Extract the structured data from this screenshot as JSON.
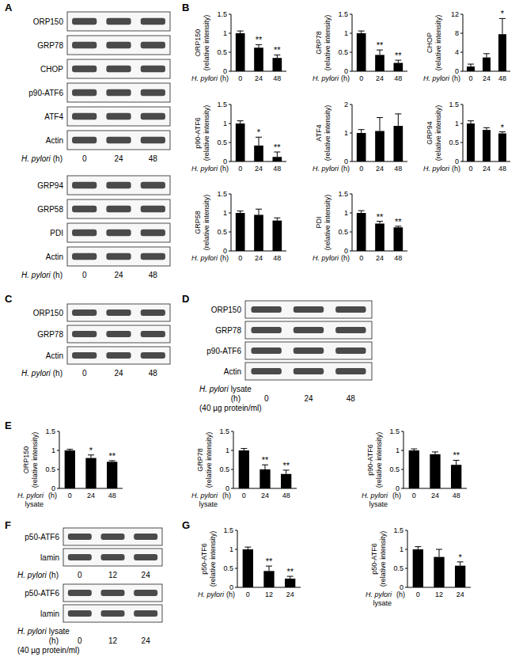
{
  "panel_labels": [
    "A",
    "B",
    "C",
    "D",
    "E",
    "F",
    "G"
  ],
  "blots": [
    {
      "rows": [
        "ORP150",
        "GRP78",
        "CHOP",
        "p90-ATF6",
        "ATF4",
        "Actin"
      ],
      "x_label": [
        "H. pylori",
        "(h)"
      ],
      "lanes": [
        "0",
        "24",
        "48"
      ]
    },
    {
      "rows": [
        "GRP94",
        "GRP58",
        "PDI",
        "Actin"
      ],
      "x_label": [
        "H. pylori",
        "(h)"
      ],
      "lanes": [
        "0",
        "24",
        "48"
      ]
    },
    {
      "rows": [
        "ORP150",
        "GRP78",
        "Actin"
      ],
      "x_label": [
        "H. pylori",
        "(h)"
      ],
      "lanes": [
        "0",
        "24",
        "48"
      ]
    },
    {
      "rows": [
        "ORP150",
        "GRP78",
        "p90-ATF6",
        "Actin"
      ],
      "x_label": [
        "H. pylori",
        "lysate",
        "(40 µg protein/ml)",
        "(h)"
      ],
      "lanes": [
        "0",
        "24",
        "48"
      ]
    },
    {
      "rows": [
        "p50-ATF6",
        "lamin"
      ],
      "x_label": [
        "H. pylori",
        "(h)"
      ],
      "lanes": [
        "0",
        "12",
        "24"
      ]
    },
    {
      "rows": [
        "p50-ATF6",
        "lamin"
      ],
      "x_label": [
        "H. pylori",
        "lysate",
        "(40 µg protein/ml)",
        "(h)"
      ],
      "lanes": [
        "0",
        "12",
        "24"
      ]
    }
  ],
  "chart_data": [
    {
      "type": "bar",
      "y_label": "ORP150 (relative intensity)",
      "x_label": [
        "H. pylori",
        "(h)"
      ],
      "categories": [
        "0",
        "24",
        "48"
      ],
      "values": [
        1,
        0.62,
        0.35
      ],
      "errors": [
        0.06,
        0.08,
        0.08
      ],
      "annotations": [
        null,
        "**",
        "**"
      ],
      "color": "#000000",
      "ylim": [
        0,
        1.5
      ],
      "yticks": [
        0,
        0.5,
        1,
        1.5
      ]
    },
    {
      "type": "bar",
      "y_label": "GRP78 (relative intensity)",
      "x_label": [
        "H. pylori",
        "(h)"
      ],
      "categories": [
        "0",
        "24",
        "48"
      ],
      "values": [
        1,
        0.43,
        0.22
      ],
      "errors": [
        0.06,
        0.13,
        0.07
      ],
      "annotations": [
        null,
        "**",
        "**"
      ],
      "color": "#000000",
      "ylim": [
        0,
        1.5
      ],
      "yticks": [
        0,
        0.5,
        1,
        1.5
      ]
    },
    {
      "type": "bar",
      "y_label": "CHOP (relative intensity)",
      "x_label": [
        "H. pylori",
        "(h)"
      ],
      "categories": [
        "0",
        "24",
        "48"
      ],
      "values": [
        1,
        2.9,
        7.8
      ],
      "errors": [
        0.5,
        0.8,
        3.3
      ],
      "annotations": [
        null,
        null,
        "*"
      ],
      "color": "#000000",
      "ylim": [
        0,
        12
      ],
      "yticks": [
        0,
        4,
        8,
        12
      ]
    },
    {
      "type": "bar",
      "y_label": "p90-ATF6 (relative intensity)",
      "x_label": [
        "H. pylori",
        "(h)"
      ],
      "categories": [
        "0",
        "24",
        "48"
      ],
      "values": [
        1,
        0.42,
        0.12
      ],
      "errors": [
        0.07,
        0.22,
        0.13
      ],
      "annotations": [
        null,
        "*",
        "**"
      ],
      "color": "#000000",
      "ylim": [
        0,
        1.5
      ],
      "yticks": [
        0,
        0.5,
        1,
        1.5
      ]
    },
    {
      "type": "bar",
      "y_label": "ATF4 (relative intensity)",
      "x_label": [
        "H. pylori",
        "(h)"
      ],
      "categories": [
        "0",
        "24",
        "48"
      ],
      "values": [
        1,
        1.07,
        1.25
      ],
      "errors": [
        0.12,
        0.47,
        0.42
      ],
      "color": "#000000",
      "ylim": [
        0,
        2
      ],
      "yticks": [
        0,
        1,
        2
      ]
    },
    {
      "type": "bar",
      "y_label": "GRP94 (relative intensity)",
      "x_label": [
        "H. pylori",
        "(h)"
      ],
      "categories": [
        "0",
        "24",
        "48"
      ],
      "values": [
        1,
        0.83,
        0.74
      ],
      "errors": [
        0.07,
        0.06,
        0.04
      ],
      "annotations": [
        null,
        null,
        "*"
      ],
      "color": "#000000",
      "ylim": [
        0,
        1.5
      ],
      "yticks": [
        0,
        0.5,
        1,
        1.5
      ]
    },
    {
      "type": "bar",
      "y_label": "GRP58 (relative intensity)",
      "x_label": [
        "H. pylori",
        "(h)"
      ],
      "categories": [
        "0",
        "24",
        "48"
      ],
      "values": [
        1,
        0.95,
        0.8
      ],
      "errors": [
        0.05,
        0.15,
        0.07
      ],
      "color": "#000000",
      "ylim": [
        0,
        1.5
      ],
      "yticks": [
        0,
        0.5,
        1,
        1.5
      ]
    },
    {
      "type": "bar",
      "y_label": "PDI (relative intensity)",
      "x_label": [
        "H. pylori",
        "(h)"
      ],
      "categories": [
        "0",
        "24",
        "48"
      ],
      "values": [
        1,
        0.72,
        0.62
      ],
      "errors": [
        0.06,
        0.06,
        0.03
      ],
      "annotations": [
        null,
        "**",
        "**"
      ],
      "color": "#000000",
      "ylim": [
        0,
        1.5
      ],
      "yticks": [
        0,
        0.5,
        1,
        1.5
      ]
    },
    {
      "type": "bar",
      "y_label": "ORP150 (relative intensity)",
      "x_label": [
        "H. pylori",
        "lysate",
        "(h)"
      ],
      "categories": [
        "0",
        "24",
        "48"
      ],
      "values": [
        1,
        0.8,
        0.7
      ],
      "errors": [
        0.03,
        0.08,
        0.03
      ],
      "annotations": [
        null,
        "*",
        "**"
      ],
      "color": "#000000",
      "ylim": [
        0,
        1.5
      ],
      "yticks": [
        0,
        0.5,
        1,
        1.5
      ]
    },
    {
      "type": "bar",
      "y_label": "GRP78 (relative intensity)",
      "x_label": [
        "H. pylori",
        "lysate",
        "(h)"
      ],
      "categories": [
        "0",
        "24",
        "48"
      ],
      "values": [
        1,
        0.5,
        0.38
      ],
      "errors": [
        0.05,
        0.12,
        0.1
      ],
      "annotations": [
        null,
        "**",
        "**"
      ],
      "color": "#000000",
      "ylim": [
        0,
        1.5
      ],
      "yticks": [
        0,
        0.5,
        1,
        1.5
      ]
    },
    {
      "type": "bar",
      "y_label": "p90-ATF6 (relative intensity)",
      "x_label": [
        "H. pylori",
        "lysate",
        "(h)"
      ],
      "categories": [
        "0",
        "24",
        "48"
      ],
      "values": [
        1,
        0.9,
        0.62
      ],
      "errors": [
        0.04,
        0.06,
        0.12
      ],
      "annotations": [
        null,
        null,
        "**"
      ],
      "color": "#000000",
      "ylim": [
        0,
        1.5
      ],
      "yticks": [
        0,
        0.5,
        1,
        1.5
      ]
    },
    {
      "type": "bar",
      "y_label": "p50-ATF6 (relative intensity)",
      "x_label": [
        "H. pylori",
        "(h)"
      ],
      "categories": [
        "0",
        "12",
        "24"
      ],
      "values": [
        1,
        0.43,
        0.23
      ],
      "errors": [
        0.06,
        0.13,
        0.06
      ],
      "annotations": [
        null,
        "**",
        "**"
      ],
      "color": "#000000",
      "ylim": [
        0,
        1.5
      ],
      "yticks": [
        0,
        0.5,
        1,
        1.5
      ]
    },
    {
      "type": "bar",
      "y_label": "p50-ATF6 (relative intensity)",
      "x_label": [
        "H. pylori",
        "lysate",
        "(h)"
      ],
      "categories": [
        "0",
        "12",
        "24"
      ],
      "values": [
        1,
        0.8,
        0.57
      ],
      "errors": [
        0.07,
        0.2,
        0.1
      ],
      "annotations": [
        null,
        null,
        "*"
      ],
      "color": "#000000",
      "ylim": [
        0,
        1.5
      ],
      "yticks": [
        0,
        0.5,
        1,
        1.5
      ]
    }
  ]
}
